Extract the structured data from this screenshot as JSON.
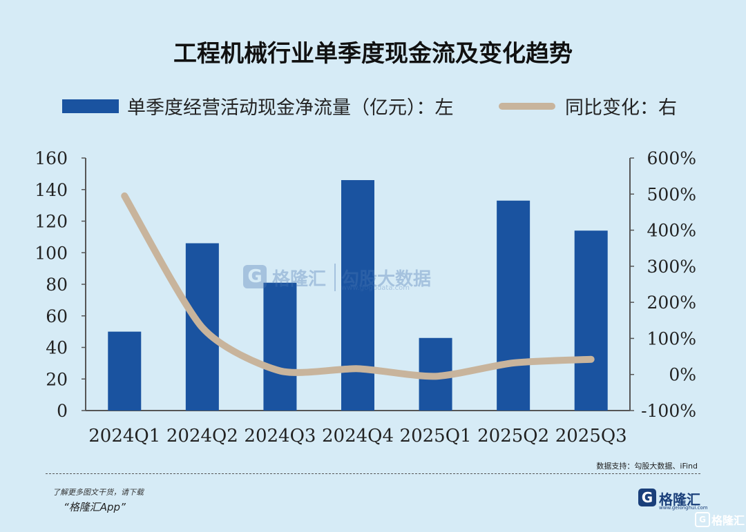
{
  "chart_data": {
    "type": "bar",
    "title": "工程机械行业单季度现金流及变化趋势",
    "categories": [
      "2024Q1",
      "2024Q2",
      "2024Q3",
      "2024Q4",
      "2025Q1",
      "2025Q2",
      "2025Q3"
    ],
    "series": [
      {
        "name": "单季度经营活动现金净流量（亿元）：左",
        "type": "bar",
        "axis": "left",
        "color": "#1a53a0",
        "values": [
          50,
          106,
          81,
          146,
          46,
          133,
          114
        ]
      },
      {
        "name": "同比变化：右",
        "type": "line",
        "axis": "right",
        "color": "#c8b49c",
        "values": [
          4.95,
          1.3,
          0.1,
          0.16,
          -0.05,
          0.32,
          0.42
        ]
      }
    ],
    "left_axis": {
      "ylim": [
        0,
        160
      ],
      "ticks": [
        "0",
        "20",
        "40",
        "60",
        "80",
        "100",
        "120",
        "140",
        "160"
      ]
    },
    "right_axis": {
      "ylim": [
        -1,
        6
      ],
      "ticks": [
        "-100%",
        "0%",
        "100%",
        "200%",
        "300%",
        "400%",
        "500%",
        "600%"
      ]
    },
    "legend_position": "top"
  },
  "watermark": {
    "name": "格隆汇",
    "partner": "勾股大数据",
    "partner_url": "www.gogudata.com"
  },
  "source": "数据支持：勾股大数据、iFind",
  "footer": {
    "promo_line1": "了解更多图文干货，请下载",
    "promo_line2": "“格隆汇App”",
    "brand_name": "格隆汇",
    "brand_url": "www.gelonghui.com",
    "corner_label": "格隆汇"
  }
}
